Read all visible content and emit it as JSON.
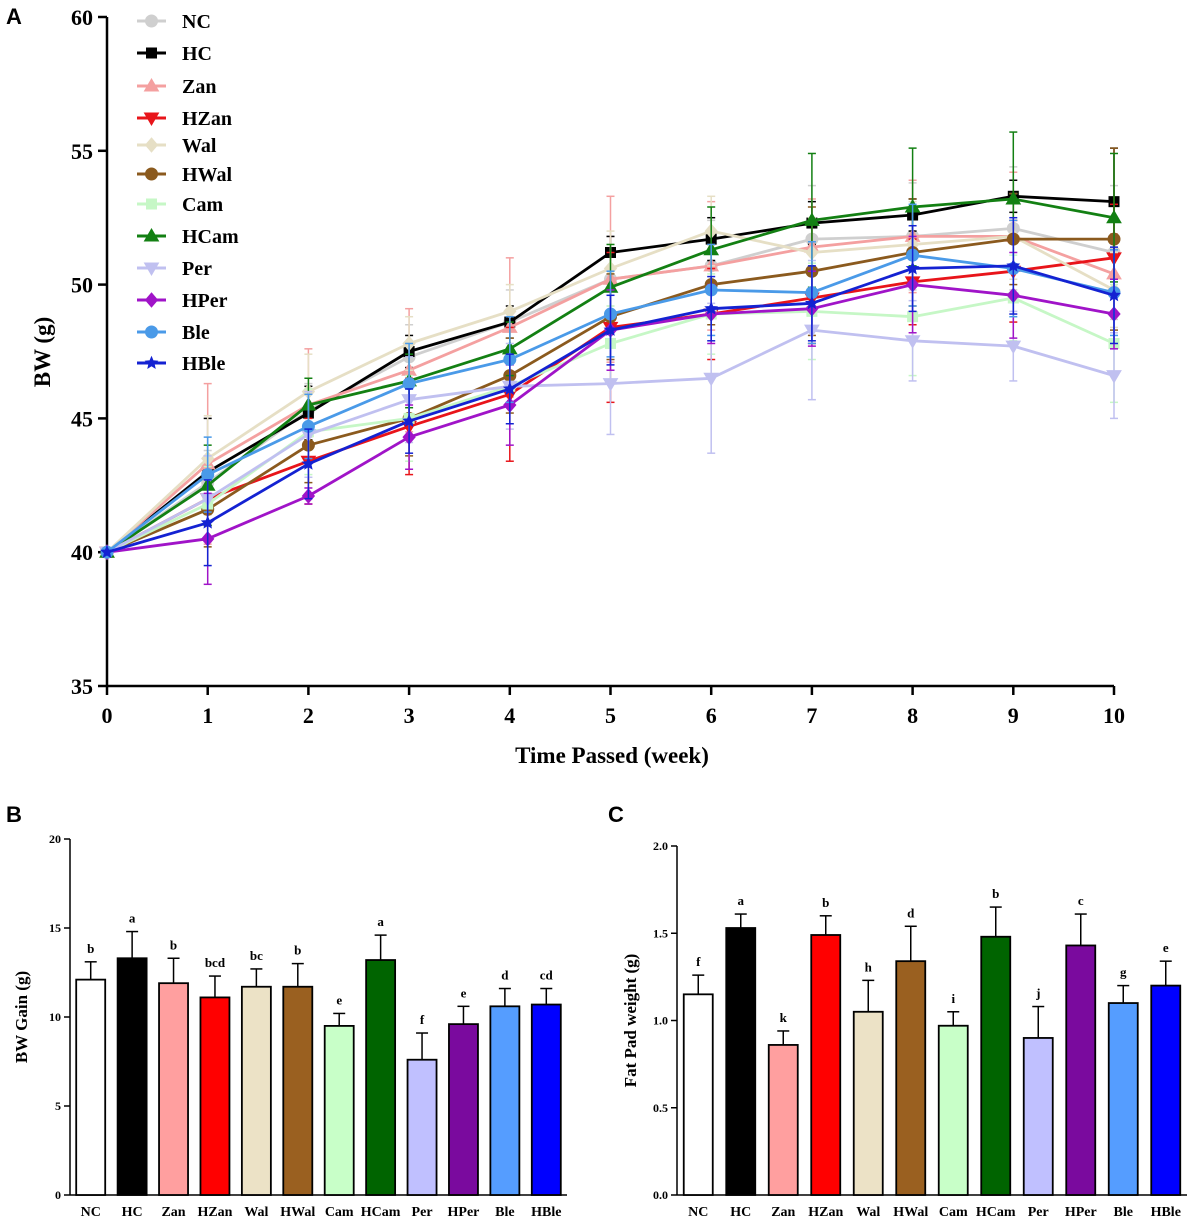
{
  "figure": {
    "panels": [
      {
        "letter": "A"
      },
      {
        "letter": "B"
      },
      {
        "letter": "C"
      }
    ]
  },
  "chart_data": [
    {
      "id": "A",
      "type": "line",
      "title": "",
      "xlabel": "Time Passed (week)",
      "ylabel": "BW (g)",
      "xlim": [
        0,
        10
      ],
      "ylim": [
        35,
        60
      ],
      "x": [
        0,
        1,
        2,
        3,
        4,
        5,
        6,
        7,
        8,
        9,
        10
      ],
      "xticks": [
        0,
        1,
        2,
        3,
        4,
        5,
        6,
        7,
        8,
        9,
        10
      ],
      "yticks": [
        35,
        40,
        45,
        50,
        55,
        60
      ],
      "legend_position": "top-left",
      "series": [
        {
          "name": "NC",
          "color": "#cfcfcf",
          "marker": "circle",
          "values": [
            40,
            42.6,
            45.3,
            47.3,
            48.6,
            50.2,
            50.7,
            51.7,
            51.8,
            52.1,
            51.2
          ],
          "errors": [
            0,
            1.2,
            1.0,
            1.2,
            1.2,
            1.6,
            1.7,
            2.0,
            2.0,
            2.3,
            2.5
          ]
        },
        {
          "name": "HC",
          "color": "#000000",
          "marker": "square",
          "values": [
            40,
            43.0,
            45.2,
            47.5,
            48.6,
            51.2,
            51.7,
            52.3,
            52.6,
            53.3,
            53.1
          ],
          "errors": [
            0,
            2.0,
            1.0,
            0.6,
            0.6,
            0.6,
            0.8,
            0.8,
            0.6,
            0.6,
            2.0
          ]
        },
        {
          "name": "Zan",
          "color": "#f4a0a0",
          "marker": "triangle-up",
          "values": [
            40,
            43.3,
            45.5,
            46.8,
            48.4,
            50.2,
            50.7,
            51.4,
            51.8,
            51.8,
            50.4
          ],
          "errors": [
            0,
            3.0,
            2.1,
            2.3,
            2.6,
            3.1,
            2.4,
            1.8,
            2.1,
            2.4,
            1.5
          ]
        },
        {
          "name": "HZan",
          "color": "#e8141a",
          "marker": "triangle-down",
          "values": [
            40,
            42.0,
            43.4,
            44.7,
            45.9,
            48.4,
            48.9,
            49.5,
            50.1,
            50.5,
            51.0
          ],
          "errors": [
            0,
            1.6,
            1.6,
            1.8,
            2.5,
            2.8,
            1.7,
            1.7,
            1.6,
            1.9,
            2.0
          ]
        },
        {
          "name": "Wal",
          "color": "#e6dfc5",
          "marker": "diamond",
          "values": [
            40,
            43.5,
            46.0,
            47.8,
            49.0,
            50.6,
            52.0,
            51.2,
            51.5,
            51.8,
            49.8
          ],
          "errors": [
            0,
            1.6,
            1.4,
            1.0,
            1.0,
            1.4,
            1.3,
            1.3,
            1.6,
            1.6,
            1.4
          ]
        },
        {
          "name": "HWal",
          "color": "#8b5a1e",
          "marker": "circle",
          "values": [
            40,
            41.6,
            44.0,
            45.0,
            46.6,
            48.8,
            50.0,
            50.5,
            51.2,
            51.7,
            51.7
          ],
          "errors": [
            0,
            1.4,
            1.4,
            1.4,
            1.4,
            1.6,
            1.5,
            2.4,
            2.0,
            1.7,
            3.4
          ]
        },
        {
          "name": "Cam",
          "color": "#c6f7c6",
          "marker": "square",
          "values": [
            40,
            41.8,
            44.5,
            45.0,
            46.2,
            47.8,
            48.9,
            49.0,
            48.8,
            49.5,
            47.8
          ],
          "errors": [
            0,
            1.4,
            1.6,
            1.6,
            1.4,
            1.4,
            1.5,
            1.8,
            2.2,
            1.6,
            2.2
          ]
        },
        {
          "name": "HCam",
          "color": "#138013",
          "marker": "triangle-up",
          "values": [
            40,
            42.5,
            45.5,
            46.4,
            47.6,
            49.9,
            51.3,
            52.4,
            52.9,
            53.2,
            52.5
          ],
          "errors": [
            0,
            1.5,
            1.0,
            1.0,
            1.0,
            1.6,
            1.6,
            2.5,
            2.2,
            2.5,
            2.4
          ]
        },
        {
          "name": "Per",
          "color": "#c0c0f0",
          "marker": "triangle-down",
          "values": [
            40,
            42.0,
            44.4,
            45.7,
            46.2,
            46.3,
            46.5,
            48.3,
            47.9,
            47.7,
            46.6
          ],
          "errors": [
            0,
            1.6,
            1.6,
            1.6,
            1.6,
            1.9,
            2.8,
            2.6,
            1.5,
            1.3,
            1.6
          ]
        },
        {
          "name": "HPer",
          "color": "#a014c8",
          "marker": "diamond",
          "values": [
            40,
            40.5,
            42.1,
            44.3,
            45.5,
            48.3,
            48.9,
            49.1,
            50.0,
            49.6,
            48.9
          ],
          "errors": [
            0,
            1.7,
            0.3,
            1.2,
            1.5,
            1.5,
            1.1,
            1.4,
            1.8,
            1.6,
            1.3
          ]
        },
        {
          "name": "Ble",
          "color": "#4a9ae8",
          "marker": "circle",
          "values": [
            40,
            42.9,
            44.7,
            46.3,
            47.2,
            48.9,
            49.8,
            49.7,
            51.1,
            50.6,
            49.7
          ],
          "errors": [
            0,
            1.4,
            1.2,
            1.5,
            1.6,
            1.6,
            1.7,
            1.9,
            1.9,
            1.8,
            1.6
          ]
        },
        {
          "name": "HBle",
          "color": "#1422d2",
          "marker": "star",
          "values": [
            40,
            41.1,
            43.3,
            44.9,
            46.1,
            48.3,
            49.1,
            49.3,
            50.6,
            50.7,
            49.6
          ],
          "errors": [
            0,
            1.6,
            1.3,
            1.2,
            1.3,
            1.3,
            1.2,
            1.4,
            1.6,
            1.8,
            1.8
          ]
        }
      ]
    },
    {
      "id": "B",
      "type": "bar",
      "title": "",
      "xlabel": "",
      "ylabel": "BW Gain (g)",
      "ylim": [
        0,
        20
      ],
      "yticks": [
        0,
        5,
        10,
        15,
        20
      ],
      "categories": [
        "NC",
        "HC",
        "Zan",
        "HZan",
        "Wal",
        "HWal",
        "Cam",
        "HCam",
        "Per",
        "HPer",
        "Ble",
        "HBle"
      ],
      "values": [
        12.1,
        13.3,
        11.9,
        11.1,
        11.7,
        11.7,
        9.5,
        13.2,
        7.6,
        9.6,
        10.6,
        10.7
      ],
      "errors": [
        1.0,
        1.5,
        1.4,
        1.2,
        1.0,
        1.3,
        0.7,
        1.4,
        1.5,
        1.0,
        1.0,
        0.9
      ],
      "labels": [
        "b",
        "a",
        "b",
        "bcd",
        "bc",
        "b",
        "e",
        "a",
        "f",
        "e",
        "d",
        "cd"
      ],
      "colors": [
        "#ffffff",
        "#000000",
        "#ff9f9f",
        "#ff0000",
        "#ece2c6",
        "#9a6020",
        "#c8ffc8",
        "#006400",
        "#c0c0ff",
        "#7a0a9e",
        "#559dff",
        "#0000ff"
      ]
    },
    {
      "id": "C",
      "type": "bar",
      "title": "",
      "xlabel": "",
      "ylabel": "Fat Pad weight (g)",
      "ylim": [
        0,
        2.0
      ],
      "yticks": [
        "0.0",
        "0.5",
        "1.0",
        "1.5",
        "2.0"
      ],
      "categories": [
        "NC",
        "HC",
        "Zan",
        "HZan",
        "Wal",
        "HWal",
        "Cam",
        "HCam",
        "Per",
        "HPer",
        "Ble",
        "HBle"
      ],
      "values": [
        1.15,
        1.53,
        0.86,
        1.49,
        1.05,
        1.34,
        0.97,
        1.48,
        0.9,
        1.43,
        1.1,
        1.2
      ],
      "errors": [
        0.11,
        0.08,
        0.08,
        0.11,
        0.18,
        0.2,
        0.08,
        0.17,
        0.18,
        0.18,
        0.1,
        0.14
      ],
      "labels": [
        "f",
        "a",
        "k",
        "b",
        "h",
        "d",
        "i",
        "b",
        "j",
        "c",
        "g",
        "e"
      ],
      "colors": [
        "#ffffff",
        "#000000",
        "#ff9f9f",
        "#ff0000",
        "#ece2c6",
        "#9a6020",
        "#c8ffc8",
        "#006400",
        "#c0c0ff",
        "#7a0a9e",
        "#559dff",
        "#0000ff"
      ]
    }
  ]
}
